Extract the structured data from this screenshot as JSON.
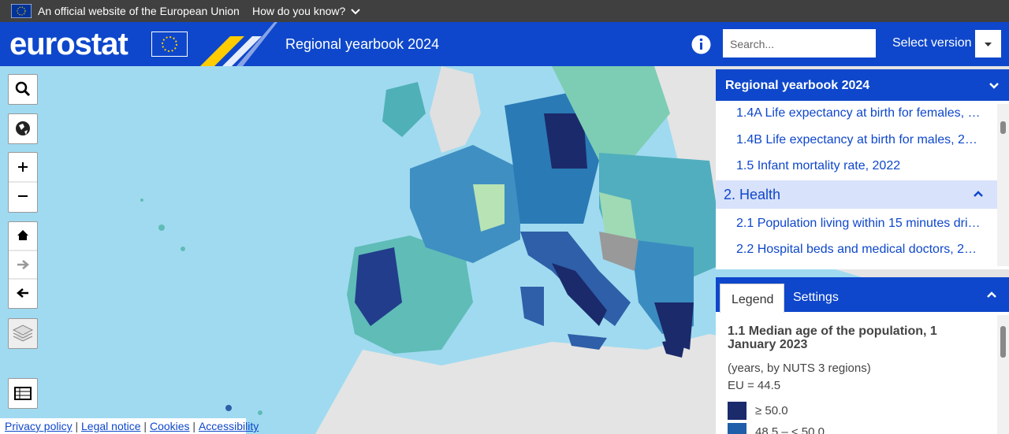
{
  "eu_banner": {
    "text": "An official website of the European Union",
    "link": "How do you know?"
  },
  "header": {
    "logo": "eurostat",
    "title": "Regional yearbook 2024",
    "search_placeholder": "Search...",
    "version_button": "Select version"
  },
  "toc": {
    "title": "Regional yearbook 2024",
    "items": [
      "1.4A Life expectancy at birth for females, …",
      "1.4B Life expectancy at birth for males, 2…",
      "1.5 Infant mortality rate, 2022"
    ],
    "section": "2. Health",
    "subitems": [
      "2.1 Population living within 15 minutes dri…",
      "2.2 Hospital beds and medical doctors, 2…"
    ]
  },
  "legend_panel": {
    "tabs": [
      "Legend",
      "Settings"
    ],
    "title": "1.1 Median age of the population, 1 January 2023",
    "subtitle": "(years, by NUTS 3 regions)",
    "eu_value": "EU = 44.5",
    "classes": [
      {
        "label": "≥ 50.0",
        "color": "#1b2a6b"
      },
      {
        "label": "48.5 – < 50.0",
        "color": "#1f5ea8"
      }
    ]
  },
  "footer_links": [
    "Privacy policy",
    "Legal notice",
    "Cookies",
    "Accessibility"
  ]
}
